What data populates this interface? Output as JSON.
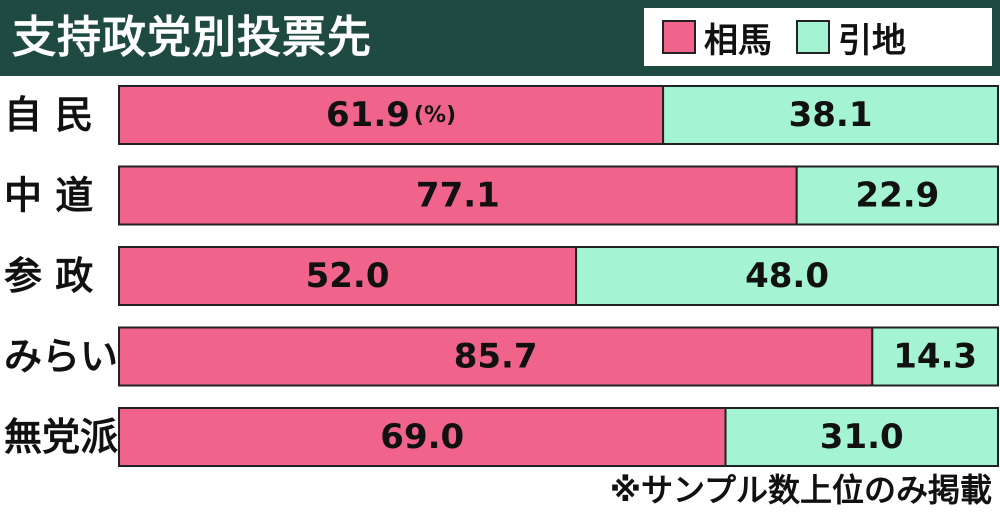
{
  "chart_data": {
    "type": "bar",
    "orientation": "horizontal",
    "stacked": true,
    "title": "支持政党別投票先",
    "categories": [
      "自 民",
      "中 道",
      "参 政",
      "みらい",
      "無党派"
    ],
    "series": [
      {
        "name": "相馬",
        "values": [
          61.9,
          77.1,
          52.0,
          85.7,
          69.0
        ],
        "labels": [
          "61.9",
          "77.1",
          "52.0",
          "85.7",
          "69.0"
        ]
      },
      {
        "name": "引地",
        "values": [
          38.1,
          22.9,
          48.0,
          14.3,
          31.0
        ],
        "labels": [
          "38.1",
          "22.9",
          "48.0",
          "14.3",
          "31.0"
        ]
      }
    ],
    "unit_label": "(%)",
    "xlim": [
      0,
      100
    ],
    "legend_position": "top-right",
    "grid": false,
    "note": "※サンプル数上位のみ掲載",
    "colors": {
      "header": "#1f4a42",
      "series_0": "#f0648c",
      "series_1": "#a4f3d2",
      "bar_border": "#222222",
      "text": "#111111"
    }
  }
}
